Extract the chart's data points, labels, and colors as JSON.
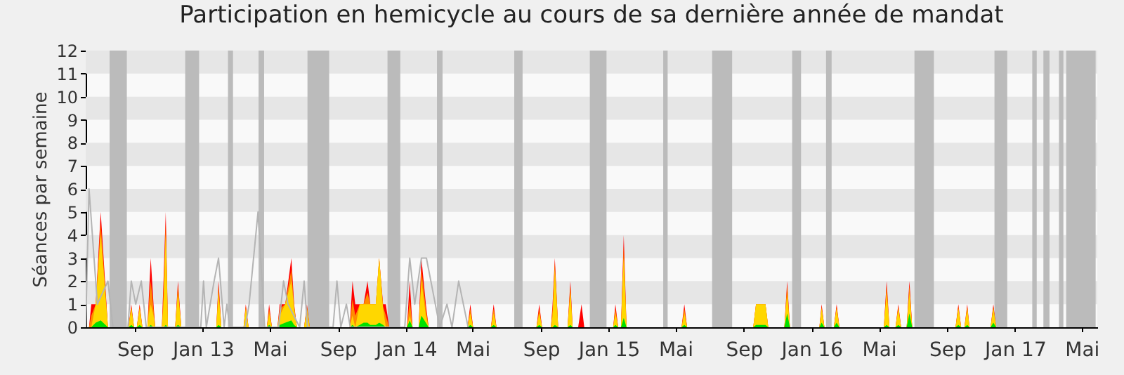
{
  "chart_data": {
    "type": "area",
    "title": "Participation en hemicycle au cours de sa dernière année de mandat",
    "ylabel": "Séances par semaine",
    "xlim": [
      "2012-06-18",
      "2017-06-12"
    ],
    "ylim": [
      0,
      12
    ],
    "xticks": [
      {
        "value": "2012-09-15",
        "label": "Sep"
      },
      {
        "value": "2013-01-15",
        "label": "Jan 13"
      },
      {
        "value": "2013-05-15",
        "label": "Mai"
      },
      {
        "value": "2013-09-15",
        "label": "Sep"
      },
      {
        "value": "2014-01-15",
        "label": "Jan 14"
      },
      {
        "value": "2014-05-15",
        "label": "Mai"
      },
      {
        "value": "2014-09-15",
        "label": "Sep"
      },
      {
        "value": "2015-01-15",
        "label": "Jan 15"
      },
      {
        "value": "2015-05-15",
        "label": "Mai"
      },
      {
        "value": "2015-09-15",
        "label": "Sep"
      },
      {
        "value": "2016-01-15",
        "label": "Jan 16"
      },
      {
        "value": "2016-05-15",
        "label": "Mai"
      },
      {
        "value": "2016-09-15",
        "label": "Sep"
      },
      {
        "value": "2017-01-15",
        "label": "Jan 17"
      },
      {
        "value": "2017-05-15",
        "label": "Mai"
      }
    ],
    "yticks": [
      0,
      1,
      2,
      3,
      4,
      5,
      6,
      7,
      8,
      9,
      10,
      11,
      12
    ],
    "grid": false,
    "x": [
      "2012-06-18",
      "2012-06-24",
      "2012-06-28",
      "2012-07-06",
      "2012-07-15",
      "2012-07-28",
      "2012-09-03",
      "2012-09-08",
      "2012-09-13",
      "2012-09-18",
      "2012-09-23",
      "2012-09-28",
      "2012-10-07",
      "2012-10-09",
      "2012-10-13",
      "2012-10-18",
      "2012-10-21",
      "2012-11-02",
      "2012-11-05",
      "2012-11-09",
      "2012-11-13",
      "2012-11-26",
      "2012-12-01",
      "2012-12-07",
      "2013-02-08",
      "2013-02-12",
      "2013-02-17",
      "2013-03-29",
      "2013-04-02",
      "2013-04-07",
      "2013-05-10",
      "2013-05-14",
      "2013-05-19",
      "2013-05-29",
      "2013-06-02",
      "2013-06-12",
      "2013-06-23",
      "2013-06-28",
      "2013-07-03",
      "2013-07-16",
      "2013-07-21",
      "2013-07-26",
      "2013-10-06",
      "2013-10-11",
      "2013-10-16",
      "2013-10-24",
      "2013-10-31",
      "2013-11-07",
      "2013-11-12",
      "2013-11-22",
      "2013-11-28",
      "2013-12-05",
      "2013-12-10",
      "2013-12-16",
      "2014-01-17",
      "2014-01-22",
      "2014-01-27",
      "2014-02-07",
      "2014-02-12",
      "2014-02-20",
      "2014-02-25",
      "2014-05-06",
      "2014-05-11",
      "2014-05-16",
      "2014-06-17",
      "2014-06-22",
      "2014-06-27",
      "2014-09-07",
      "2014-09-12",
      "2014-09-17",
      "2014-10-03",
      "2014-10-06",
      "2014-10-10",
      "2014-10-16",
      "2014-11-02",
      "2014-11-07",
      "2014-11-11",
      "2014-11-21",
      "2014-11-27",
      "2014-12-02",
      "2015-01-23",
      "2015-01-27",
      "2015-02-01",
      "2015-02-06",
      "2015-02-11",
      "2015-02-16",
      "2015-05-26",
      "2015-05-31",
      "2015-06-05",
      "2015-10-02",
      "2015-10-07",
      "2015-10-24",
      "2015-10-29",
      "2015-11-27",
      "2015-12-02",
      "2015-12-07",
      "2016-01-29",
      "2016-02-02",
      "2016-02-07",
      "2016-02-24",
      "2016-02-29",
      "2016-03-05",
      "2016-05-24",
      "2016-05-29",
      "2016-06-03",
      "2016-06-14",
      "2016-06-19",
      "2016-06-24",
      "2016-07-04",
      "2016-07-09",
      "2016-07-14",
      "2016-09-30",
      "2016-10-05",
      "2016-10-10",
      "2016-10-16",
      "2016-10-21",
      "2016-10-25",
      "2016-12-02",
      "2016-12-07",
      "2016-12-12",
      "2017-06-12"
    ],
    "series": [
      {
        "color": "#ff0000",
        "values": [
          0,
          0,
          1,
          1,
          5,
          0,
          0,
          1,
          0,
          0,
          1,
          0,
          0,
          1,
          3,
          1,
          0,
          0,
          2,
          5,
          0,
          0,
          2,
          0,
          0,
          2,
          0,
          0,
          1,
          0,
          0,
          1,
          0,
          0,
          1,
          1,
          3,
          1,
          0,
          0,
          1,
          0,
          0,
          2,
          1,
          1,
          1,
          2,
          1,
          1,
          3,
          1,
          1,
          0,
          0,
          2,
          0,
          0,
          3,
          1,
          0,
          0,
          1,
          0,
          0,
          1,
          0,
          0,
          1,
          0,
          0,
          1,
          3,
          0,
          0,
          2,
          0,
          0,
          1,
          0,
          0,
          1,
          0,
          0,
          4,
          0,
          0,
          1,
          0,
          0,
          1,
          1,
          0,
          0,
          2,
          0,
          0,
          1,
          0,
          0,
          1,
          0,
          0,
          2,
          0,
          0,
          1,
          0,
          0,
          2,
          0,
          0,
          1,
          0,
          0,
          1,
          0,
          0,
          1,
          0,
          0
        ]
      },
      {
        "color": "#ff8c00",
        "values": [
          0,
          0,
          0.5,
          1,
          4.5,
          0,
          0,
          0.9,
          0,
          0,
          0.9,
          0,
          0,
          0.8,
          2,
          0.8,
          0,
          0,
          1.5,
          4.5,
          0,
          0,
          1.8,
          0,
          0,
          1.8,
          0,
          0,
          0.9,
          0,
          0,
          0.8,
          0,
          0,
          0.8,
          1,
          2.5,
          0.9,
          0,
          0,
          0.9,
          0,
          0,
          1.2,
          0.5,
          1,
          1,
          1.5,
          1,
          1,
          3,
          0.9,
          0.5,
          0,
          0,
          1.2,
          0,
          0,
          2.5,
          0.8,
          0,
          0,
          0.8,
          0,
          0,
          0.8,
          0,
          0,
          0.8,
          0,
          0,
          0.8,
          2.8,
          0,
          0,
          1.8,
          0,
          0,
          0,
          0,
          0,
          0.8,
          0,
          0,
          3.5,
          0,
          0,
          0.8,
          0,
          0,
          1,
          1,
          0,
          0,
          1.8,
          0,
          0,
          0.9,
          0,
          0,
          0.9,
          0,
          0,
          1.8,
          0,
          0,
          0.9,
          0,
          0,
          1.8,
          0,
          0,
          0.9,
          0,
          0,
          0.9,
          0,
          0,
          0.9,
          0,
          0
        ]
      },
      {
        "color": "#ffd700",
        "values": [
          0,
          0,
          0,
          1,
          4,
          0,
          0,
          0.8,
          0,
          0,
          0.8,
          0,
          0,
          0.5,
          1,
          0.5,
          0,
          0,
          1,
          4,
          0,
          0,
          1.5,
          0,
          0,
          1.5,
          0,
          0,
          0.8,
          0,
          0,
          0.6,
          0,
          0,
          0.5,
          1,
          2,
          0.8,
          0,
          0,
          0.8,
          0,
          0,
          0.5,
          0,
          1,
          1,
          1,
          1,
          1,
          3,
          0.8,
          0,
          0,
          0,
          0.5,
          0,
          0,
          2,
          0.5,
          0,
          0,
          0.6,
          0,
          0,
          0.6,
          0,
          0,
          0.6,
          0,
          0,
          0.5,
          2.5,
          0,
          0,
          1.5,
          0,
          0,
          0,
          0,
          0,
          0.6,
          0,
          0,
          3,
          0,
          0,
          0.6,
          0,
          0,
          1,
          1,
          0,
          0,
          1.5,
          0,
          0,
          0.8,
          0,
          0,
          0.8,
          0,
          0,
          1.5,
          0,
          0,
          0.8,
          0,
          0,
          1.5,
          0,
          0,
          0.8,
          0,
          0,
          0.8,
          0,
          0,
          0.8,
          0,
          0
        ]
      },
      {
        "color": "#00e000",
        "values": [
          0,
          0,
          0,
          0.2,
          0.3,
          0,
          0,
          0.1,
          0,
          0,
          0.1,
          0,
          0,
          0,
          0.1,
          0,
          0,
          0,
          0,
          0.1,
          0,
          0,
          0.1,
          0,
          0,
          0.1,
          0,
          0,
          0,
          0,
          0,
          0.1,
          0,
          0,
          0.1,
          0.2,
          0.3,
          0.1,
          0,
          0,
          0,
          0,
          0,
          0.1,
          0,
          0.1,
          0.2,
          0.2,
          0.1,
          0.1,
          0.2,
          0.1,
          0,
          0,
          0,
          0.3,
          0,
          0,
          0.5,
          0.2,
          0,
          0,
          0.1,
          0,
          0,
          0.1,
          0,
          0,
          0.1,
          0,
          0,
          0,
          0.1,
          0,
          0,
          0.1,
          0,
          0,
          0,
          0,
          0,
          0.1,
          0,
          0,
          0.4,
          0,
          0,
          0.1,
          0,
          0,
          0.1,
          0.1,
          0,
          0,
          0.6,
          0,
          0,
          0.2,
          0,
          0,
          0.2,
          0,
          0,
          0.1,
          0,
          0,
          0.1,
          0,
          0,
          0.6,
          0,
          0,
          0.1,
          0,
          0,
          0.1,
          0,
          0,
          0.2,
          0,
          0
        ]
      },
      {
        "type": "line",
        "color": "#b4b4b4",
        "x": [
          "2012-06-18",
          "2012-06-24",
          "2012-07-09",
          "2012-07-28",
          "2012-08-06",
          "2012-09-02",
          "2012-09-08",
          "2012-09-16",
          "2012-09-26",
          "2012-10-05",
          "2013-01-11",
          "2013-01-16",
          "2013-01-21",
          "2013-02-04",
          "2013-02-12",
          "2013-02-22",
          "2013-02-27",
          "2013-03-04",
          "2013-04-01",
          "2013-04-08",
          "2013-04-24",
          "2013-05-06",
          "2013-05-31",
          "2013-06-09",
          "2013-06-17",
          "2013-07-08",
          "2013-07-16",
          "2013-07-22",
          "2013-09-06",
          "2013-09-13",
          "2013-09-20",
          "2013-09-30",
          "2013-10-07",
          "2014-01-13",
          "2014-01-22",
          "2014-01-31",
          "2014-02-12",
          "2014-02-21",
          "2014-03-09",
          "2014-03-17",
          "2014-03-30",
          "2014-04-08",
          "2014-04-20",
          "2014-05-07"
        ],
        "values": [
          0,
          6,
          1,
          2,
          0,
          0,
          2,
          1,
          2,
          0,
          0,
          2,
          0,
          2,
          3,
          0,
          1,
          0,
          0,
          1,
          5,
          0,
          0,
          2,
          1,
          0,
          2,
          0,
          0,
          2,
          0,
          1,
          0,
          0,
          3,
          1,
          3,
          3,
          1,
          0,
          1,
          0,
          2,
          0
        ]
      }
    ],
    "bands": [
      {
        "axis": "y",
        "from": 1,
        "to": 2,
        "color": "#e6e6e6"
      },
      {
        "axis": "y",
        "from": 3,
        "to": 4,
        "color": "#e6e6e6"
      },
      {
        "axis": "y",
        "from": 5,
        "to": 6,
        "color": "#e6e6e6"
      },
      {
        "axis": "y",
        "from": 7,
        "to": 8,
        "color": "#e6e6e6"
      },
      {
        "axis": "y",
        "from": 9,
        "to": 10,
        "color": "#e6e6e6"
      },
      {
        "axis": "y",
        "from": 11,
        "to": 12,
        "color": "#e6e6e6"
      },
      {
        "axis": "x",
        "from": "2012-07-31",
        "to": "2012-08-31",
        "color": "#bbbbbb"
      },
      {
        "axis": "x",
        "from": "2012-12-14",
        "to": "2013-01-08",
        "color": "#bbbbbb"
      },
      {
        "axis": "x",
        "from": "2013-03-01",
        "to": "2013-03-10",
        "color": "#bbbbbb"
      },
      {
        "axis": "x",
        "from": "2013-04-25",
        "to": "2013-05-05",
        "color": "#bbbbbb"
      },
      {
        "axis": "x",
        "from": "2013-07-22",
        "to": "2013-08-30",
        "color": "#bbbbbb"
      },
      {
        "axis": "x",
        "from": "2013-12-13",
        "to": "2014-01-05",
        "color": "#bbbbbb"
      },
      {
        "axis": "x",
        "from": "2014-03-12",
        "to": "2014-03-22",
        "color": "#bbbbbb"
      },
      {
        "axis": "x",
        "from": "2014-07-29",
        "to": "2014-08-13",
        "color": "#bbbbbb"
      },
      {
        "axis": "x",
        "from": "2014-12-12",
        "to": "2015-01-11",
        "color": "#bbbbbb"
      },
      {
        "axis": "x",
        "from": "2015-04-23",
        "to": "2015-05-01",
        "color": "#bbbbbb"
      },
      {
        "axis": "x",
        "from": "2015-07-20",
        "to": "2015-08-25",
        "color": "#bbbbbb"
      },
      {
        "axis": "x",
        "from": "2015-12-11",
        "to": "2015-12-27",
        "color": "#bbbbbb"
      },
      {
        "axis": "x",
        "from": "2016-02-10",
        "to": "2016-02-20",
        "color": "#bbbbbb"
      },
      {
        "axis": "x",
        "from": "2016-07-18",
        "to": "2016-08-22",
        "color": "#bbbbbb"
      },
      {
        "axis": "x",
        "from": "2016-12-09",
        "to": "2017-01-01",
        "color": "#bbbbbb"
      },
      {
        "axis": "x",
        "from": "2017-02-15",
        "to": "2017-02-23",
        "color": "#bbbbbb"
      },
      {
        "axis": "x",
        "from": "2017-03-07",
        "to": "2017-03-18",
        "color": "#bbbbbb"
      },
      {
        "axis": "x",
        "from": "2017-04-04",
        "to": "2017-04-12",
        "color": "#bbbbbb"
      },
      {
        "axis": "x",
        "from": "2017-04-17",
        "to": "2017-06-09",
        "color": "#bbbbbb"
      }
    ]
  }
}
